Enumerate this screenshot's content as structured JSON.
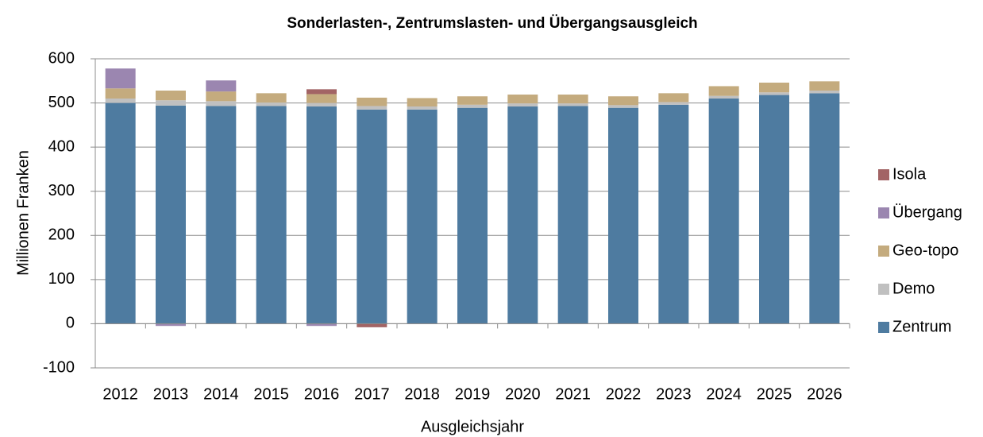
{
  "chart_data": {
    "type": "stacked_bar",
    "title": "Sonderlasten-, Zentrumslasten- und Übergangsausgleich",
    "x_label": "Ausgleichsjahr",
    "y_label": "Millionen Franken",
    "categories": [
      "2012",
      "2013",
      "2014",
      "2015",
      "2016",
      "2017",
      "2018",
      "2019",
      "2020",
      "2021",
      "2022",
      "2023",
      "2024",
      "2025",
      "2026"
    ],
    "series": [
      {
        "name": "Zentrum",
        "color": "#4e7ba0",
        "values": [
          500,
          494,
          493,
          493,
          492,
          485,
          485,
          489,
          492,
          493,
          489,
          496,
          510,
          518,
          522
        ]
      },
      {
        "name": "Demo",
        "color": "#c0c0c0",
        "values": [
          10,
          12,
          11,
          8,
          8,
          8,
          7,
          7,
          7,
          6,
          6,
          6,
          6,
          6,
          6
        ]
      },
      {
        "name": "Geo-topo",
        "color": "#c4ab7e",
        "values": [
          23,
          22,
          22,
          21,
          20,
          19,
          19,
          19,
          20,
          20,
          20,
          20,
          22,
          22,
          21
        ]
      },
      {
        "name": "Übergang",
        "color": "#9b86b0",
        "values": [
          45,
          -5,
          25,
          0,
          -5,
          0,
          0,
          0,
          0,
          0,
          0,
          0,
          0,
          0,
          0
        ]
      },
      {
        "name": "Isola",
        "color": "#a26465",
        "values": [
          0,
          0,
          0,
          0,
          11,
          -8,
          0,
          0,
          0,
          0,
          0,
          0,
          0,
          0,
          0
        ]
      }
    ],
    "ylim": [
      -100,
      600
    ],
    "yticks": [
      -100,
      0,
      100,
      200,
      300,
      400,
      500,
      600
    ],
    "grid": true,
    "legend": "right"
  }
}
